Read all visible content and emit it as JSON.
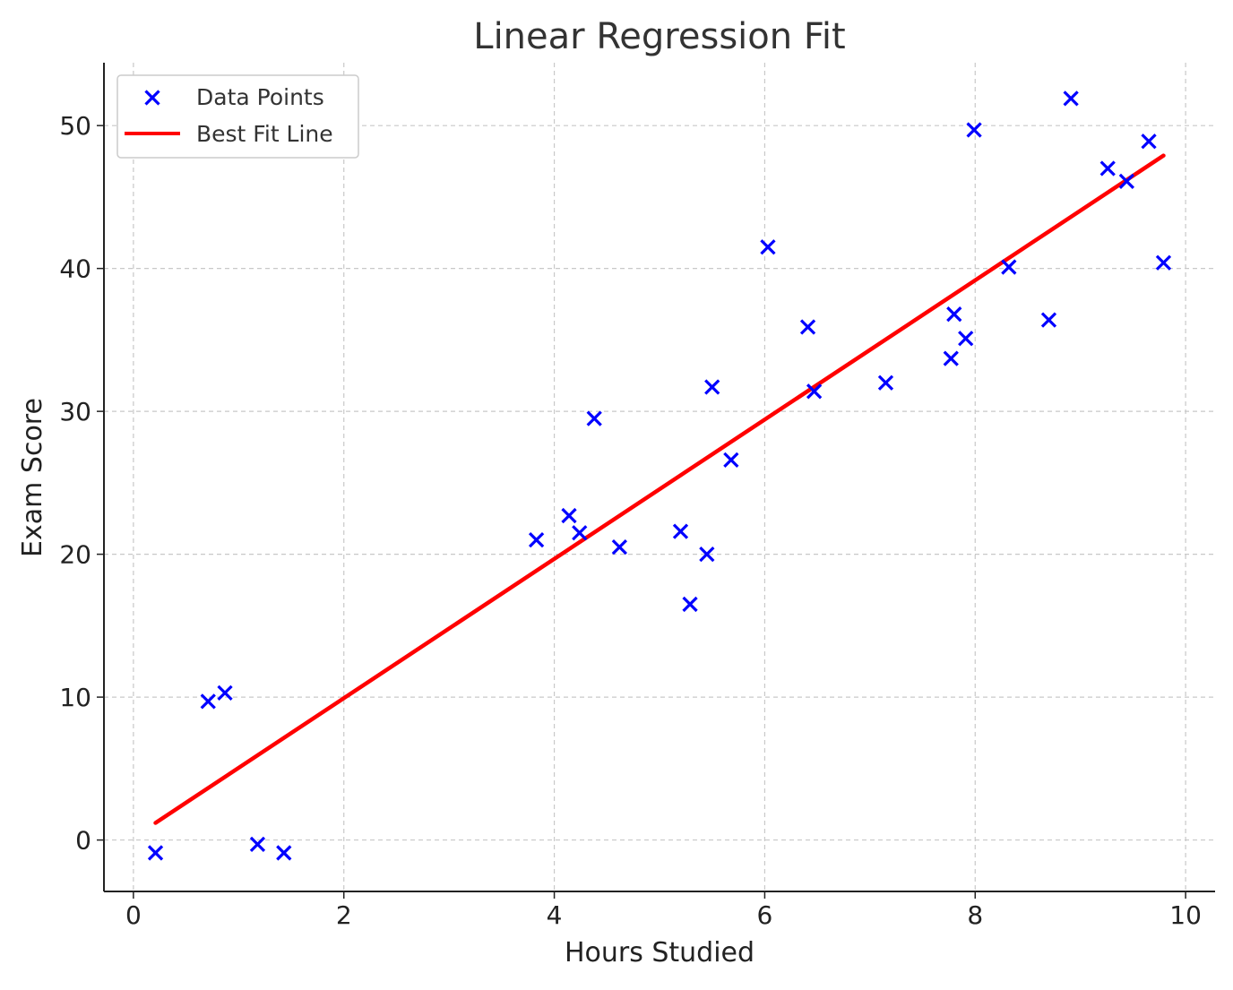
{
  "chart_data": {
    "type": "scatter",
    "title": "Linear Regression Fit",
    "xlabel": "Hours Studied",
    "ylabel": "Exam Score",
    "xlim": [
      -0.28,
      10.28
    ],
    "ylim": [
      -3.6,
      54.4
    ],
    "xticks": [
      0,
      2,
      4,
      6,
      8,
      10
    ],
    "yticks": [
      0,
      10,
      20,
      30,
      40,
      50
    ],
    "grid": true,
    "legend_position": "top-left",
    "series": [
      {
        "name": "Data Points",
        "kind": "scatter",
        "marker": "x",
        "color": "#0000ff",
        "points": [
          [
            0.21,
            -0.9
          ],
          [
            0.71,
            9.7
          ],
          [
            0.87,
            10.3
          ],
          [
            1.18,
            -0.3
          ],
          [
            1.43,
            -0.9
          ],
          [
            3.83,
            21.0
          ],
          [
            4.14,
            22.7
          ],
          [
            4.24,
            21.5
          ],
          [
            4.38,
            29.5
          ],
          [
            4.62,
            20.5
          ],
          [
            5.2,
            21.6
          ],
          [
            5.29,
            16.5
          ],
          [
            5.45,
            20.0
          ],
          [
            5.5,
            31.7
          ],
          [
            5.68,
            26.6
          ],
          [
            6.03,
            41.5
          ],
          [
            6.41,
            35.9
          ],
          [
            6.47,
            31.4
          ],
          [
            7.15,
            32.0
          ],
          [
            7.77,
            33.7
          ],
          [
            7.8,
            36.8
          ],
          [
            7.91,
            35.1
          ],
          [
            7.99,
            49.7
          ],
          [
            8.32,
            40.1
          ],
          [
            8.7,
            36.4
          ],
          [
            8.91,
            51.9
          ],
          [
            9.26,
            47.0
          ],
          [
            9.44,
            46.1
          ],
          [
            9.65,
            48.9
          ],
          [
            9.79,
            40.4
          ]
        ]
      },
      {
        "name": "Best Fit Line",
        "kind": "line",
        "color": "#ff0000",
        "points": [
          [
            0.21,
            1.2
          ],
          [
            9.79,
            47.9
          ]
        ]
      }
    ]
  }
}
